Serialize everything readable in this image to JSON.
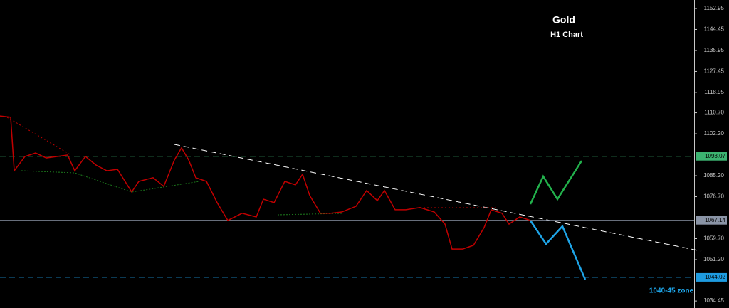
{
  "chart_data": {
    "type": "line",
    "title": "Gold",
    "subtitle": "H1 Chart",
    "annotation": "1040-45 zone",
    "series": [
      {
        "color": "#c00000",
        "x": [
          0,
          15,
          20,
          35,
          50,
          65,
          80,
          95,
          105,
          120,
          135,
          150,
          165,
          185,
          195,
          215,
          230,
          245,
          255,
          265,
          275,
          290,
          305,
          320,
          340,
          360,
          370,
          385,
          400,
          415,
          425,
          435,
          450,
          465,
          480,
          500,
          515,
          530,
          540,
          555,
          570,
          590,
          610,
          625,
          635,
          650,
          665,
          680,
          690,
          705,
          715,
          730,
          745
        ],
        "values": [
          1109.4,
          1108.9,
          1087.2,
          1093.0,
          1094.4,
          1092.4,
          1093.0,
          1093.6,
          1087.2,
          1093.0,
          1089.5,
          1087.2,
          1087.8,
          1078.6,
          1082.9,
          1084.4,
          1080.9,
          1091.6,
          1096.5,
          1091.6,
          1084.4,
          1082.9,
          1074.3,
          1067.1,
          1070.0,
          1068.5,
          1075.7,
          1074.3,
          1082.9,
          1081.5,
          1085.8,
          1077.2,
          1070.0,
          1070.0,
          1070.5,
          1072.8,
          1079.2,
          1075.1,
          1079.2,
          1071.4,
          1071.4,
          1072.3,
          1070.5,
          1065.6,
          1055.5,
          1055.5,
          1057.0,
          1064.2,
          1071.4,
          1070.0,
          1065.6,
          1068.5,
          1067.1
        ]
      }
    ],
    "levels": [
      {
        "value": 1093.07,
        "color": "#3cb371",
        "style": "dashed"
      },
      {
        "value": 1067.14,
        "color": "#8a94a6",
        "style": "solid"
      },
      {
        "value": 1044.02,
        "color": "#1e9be0",
        "style": "dashed"
      }
    ],
    "xlim": [
      0,
      975
    ],
    "ylim": [
      1031.6,
      1156.4
    ],
    "yticks": [
      1152.95,
      1144.45,
      1135.95,
      1127.45,
      1118.95,
      {
        "value": 1110.7,
        "label": "1110.70"
      },
      {
        "value": 1102.2,
        "label": "1102.20"
      },
      {
        "value": 1085.2,
        "label": "1085.20"
      },
      {
        "value": 1076.7,
        "label": "1076.70"
      },
      {
        "value": 1059.7,
        "label": "1059.70"
      },
      {
        "value": 1051.2,
        "label": "1051.20"
      },
      1034.45
    ]
  }
}
